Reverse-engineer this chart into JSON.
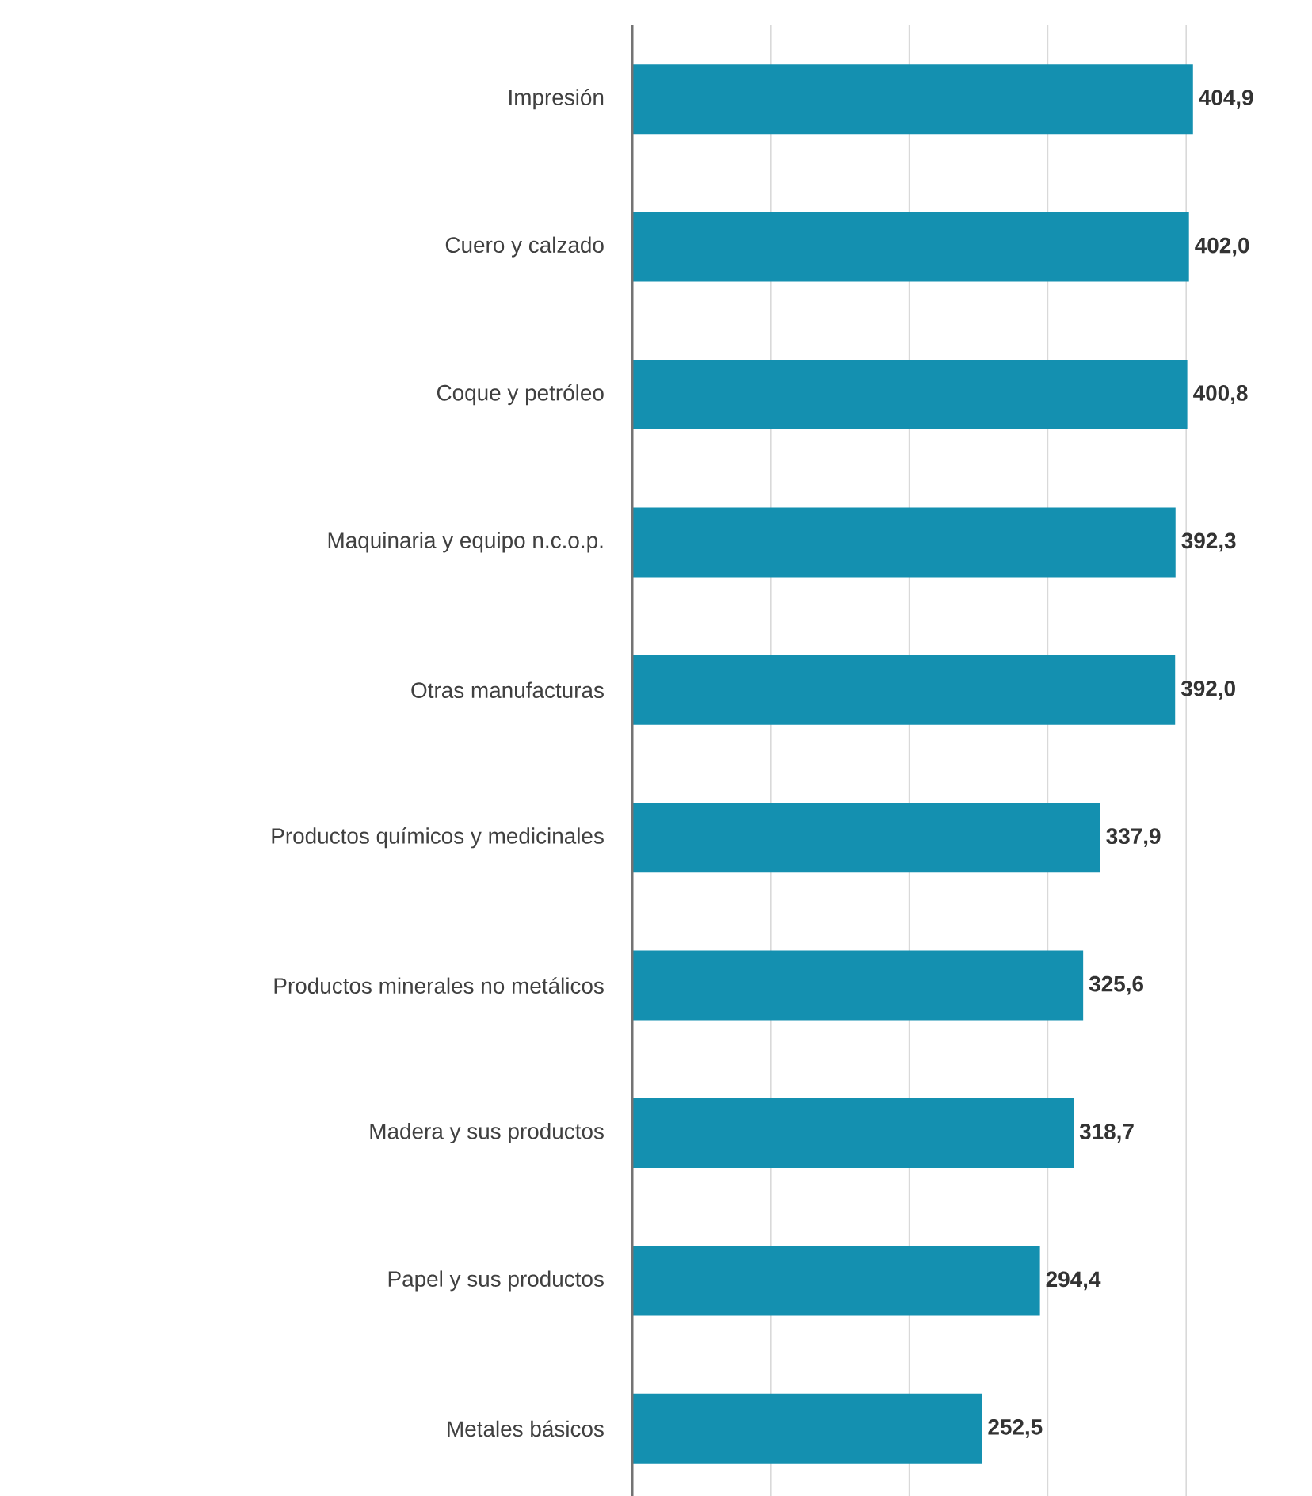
{
  "chart_data": {
    "type": "bar",
    "orientation": "horizontal",
    "categories": [
      "Impresión",
      "Cuero y calzado",
      "Coque y petróleo",
      "Maquinaria y equipo n.c.o.p.",
      "Otras manufacturas",
      "Productos químicos y medicinales",
      "Productos minerales no metálicos",
      "Madera y sus productos",
      "Papel y sus productos",
      "Metales básicos"
    ],
    "values": [
      404.9,
      402.0,
      400.8,
      392.3,
      392.0,
      337.9,
      325.6,
      318.7,
      294.4,
      252.5
    ],
    "value_labels": [
      "404,9",
      "402,0",
      "400,8",
      "392,3",
      "392,0",
      "337,9",
      "325,6",
      "318,7",
      "294,4",
      "252,5"
    ],
    "color": "#1490b0",
    "xticks": [
      {
        "value": 100,
        "label": null
      },
      {
        "value": 200,
        "label": null
      },
      {
        "value": 300,
        "label": null
      },
      {
        "value": 400,
        "label": null
      }
    ],
    "grid": "x",
    "tick_labels": "y"
  }
}
